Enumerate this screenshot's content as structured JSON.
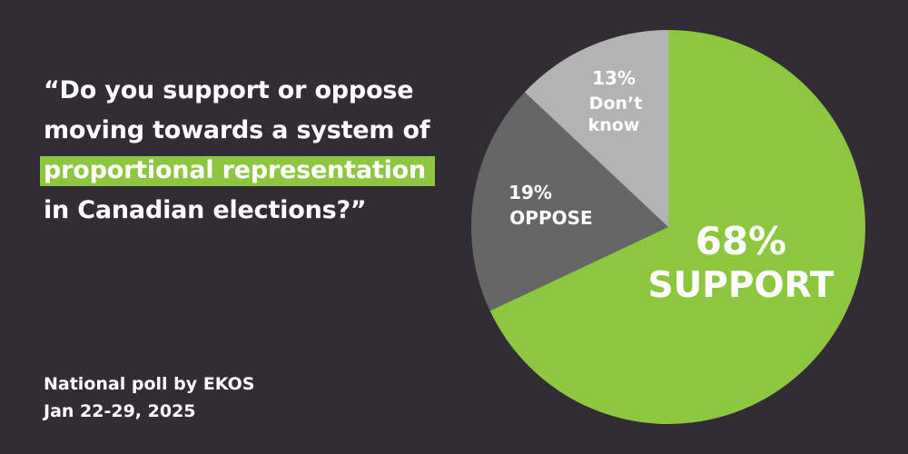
{
  "question": {
    "line1": "“Do you support or oppose",
    "line2": "moving towards a system of",
    "highlight": "proportional representation",
    "line4": "in Canadian elections?”"
  },
  "source": {
    "line1": "National poll by EKOS",
    "line2": "Jan 22-29, 2025"
  },
  "colors": {
    "background": "#322d35",
    "support": "#8dc63f",
    "oppose": "#666666",
    "dont_know": "#b3b3b3"
  },
  "chart_data": {
    "type": "pie",
    "title": "",
    "slices": [
      {
        "key": "support",
        "value": 68,
        "pct_label": "68%",
        "label": "SUPPORT",
        "color": "#8dc63f"
      },
      {
        "key": "oppose",
        "value": 19,
        "pct_label": "19%",
        "label": "OPPOSE",
        "color": "#666666"
      },
      {
        "key": "dont_know",
        "value": 13,
        "pct_label": "13%",
        "label_lines": [
          "Don’t",
          "know"
        ],
        "color": "#b3b3b3"
      }
    ]
  }
}
